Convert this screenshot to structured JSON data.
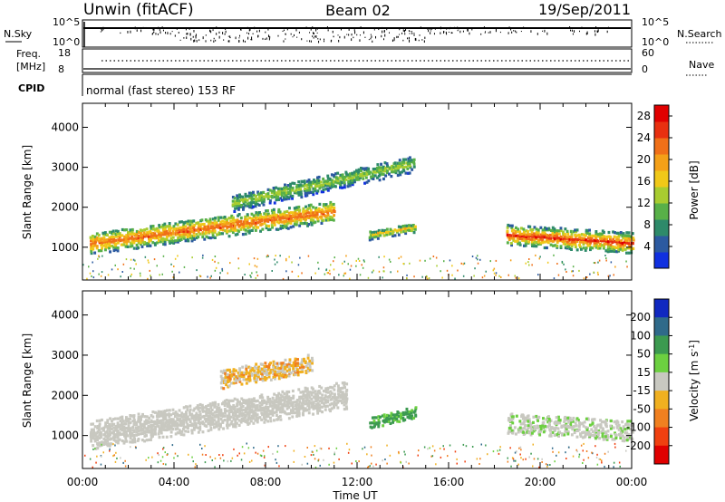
{
  "header": {
    "station": "Unwin (fitACF)",
    "beam": "Beam 02",
    "date": "19/Sep/2011"
  },
  "top_panels": {
    "nsky_label": "N.Sky",
    "nsky_ticks": [
      "10^5",
      "10^0"
    ],
    "nsearch_label": "N.Search",
    "nsearch_ticks": [
      "10^5",
      "10^0"
    ],
    "freq_label_1": "Freq.",
    "freq_label_2": "[MHz]",
    "freq_ticks": [
      "18",
      "8"
    ],
    "nave_label": "Nave",
    "nave_ticks": [
      "60",
      "0"
    ],
    "cpid_label": "CPID",
    "cpid_text": "normal (fast stereo) 153 RF"
  },
  "chart_data": [
    {
      "type": "heatmap",
      "parameter": "Power",
      "xlabel": "Time UT",
      "ylabel": "Slant Range [km]",
      "x_ticks": [
        "00:00",
        "04:00",
        "08:00",
        "12:00",
        "16:00",
        "20:00",
        "00:00"
      ],
      "y_ticks": [
        1000,
        2000,
        3000,
        4000
      ],
      "xlim_hours": [
        0,
        24
      ],
      "ylim_km": [
        180,
        4600
      ],
      "colorbar": {
        "label": "Power [dB]",
        "ticks": [
          4,
          8,
          12,
          16,
          20,
          24,
          28
        ],
        "range": [
          0,
          30
        ],
        "colors": [
          "#1030e0",
          "#2c5aa0",
          "#2e8a6a",
          "#58b048",
          "#a8cc30",
          "#f0c818",
          "#f4a018",
          "#f07018",
          "#e83010",
          "#e00000"
        ]
      },
      "features": [
        {
          "desc": "main band",
          "t_start": 0.3,
          "t_end": 11.0,
          "range_start": 1100,
          "range_end": 1900,
          "power_db": 24
        },
        {
          "desc": "upper band",
          "t_start": 6.5,
          "t_end": 14.5,
          "range_start": 2100,
          "range_end": 3100,
          "power_db": 14
        },
        {
          "desc": "blob",
          "t_start": 12.5,
          "t_end": 14.5,
          "range_start": 1300,
          "range_end": 1500,
          "power_db": 18
        },
        {
          "desc": "evening band",
          "t_start": 18.5,
          "t_end": 24.0,
          "range_start": 1300,
          "range_end": 1100,
          "power_db": 26
        }
      ]
    },
    {
      "type": "heatmap",
      "parameter": "Velocity",
      "xlabel": "Time UT",
      "ylabel": "Slant Range [km]",
      "x_ticks": [
        "00:00",
        "04:00",
        "08:00",
        "12:00",
        "16:00",
        "20:00",
        "00:00"
      ],
      "y_ticks": [
        1000,
        2000,
        3000,
        4000
      ],
      "xlim_hours": [
        0,
        24
      ],
      "ylim_km": [
        180,
        4600
      ],
      "colorbar": {
        "label": "Velocity [m s^-1]",
        "ticks": [
          "200",
          "100",
          "50",
          "15",
          "-15",
          "-50",
          "-100",
          "-200"
        ],
        "colors": [
          "#1028c0",
          "#2f6a8a",
          "#3c9a50",
          "#6cd040",
          "#c8c8c0",
          "#f0b020",
          "#f08020",
          "#f04010",
          "#e00000"
        ]
      },
      "features": [
        {
          "desc": "ground scatter band",
          "t_start": 0.3,
          "t_end": 11.5,
          "range_start": 1000,
          "range_end": 2000,
          "velocity": 0
        },
        {
          "desc": "ionospheric echoes",
          "t_start": 6.0,
          "t_end": 10.0,
          "range_start": 2400,
          "range_end": 2800,
          "velocity": -40
        },
        {
          "desc": "green blob",
          "t_start": 12.5,
          "t_end": 14.5,
          "range_start": 1300,
          "range_end": 1600,
          "velocity": 60
        }
      ]
    }
  ]
}
